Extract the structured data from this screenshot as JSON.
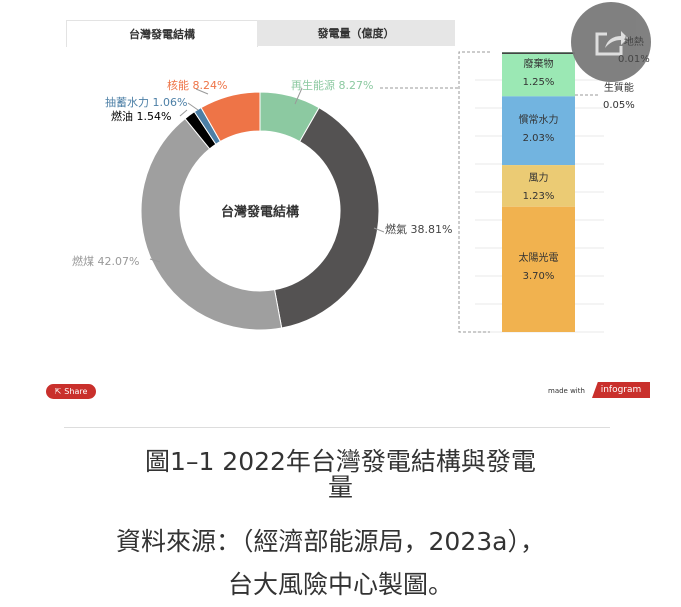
{
  "tabs": [
    {
      "label": "台灣發電結構",
      "active": true
    },
    {
      "label": "發電量（億度）",
      "active": false
    }
  ],
  "chart_data": [
    {
      "type": "pie",
      "subtype": "donut",
      "center_label": "台灣發電結構",
      "unit": "%",
      "slices": [
        {
          "name": "再生能源",
          "value": 8.27,
          "color": "#8cc9a1",
          "label": "再生能源 8.27%"
        },
        {
          "name": "燃氣",
          "value": 38.81,
          "color": "#545252",
          "label": "燃氣 38.81%"
        },
        {
          "name": "燃煤",
          "value": 42.07,
          "color": "#9f9f9f",
          "label": "燃煤 42.07%"
        },
        {
          "name": "燃油",
          "value": 1.54,
          "color": "#000000",
          "label": "燃油 1.54%"
        },
        {
          "name": "抽蓄水力",
          "value": 1.06,
          "color": "#4c7fa6",
          "label": "抽蓄水力 1.06%"
        },
        {
          "name": "核能",
          "value": 8.24,
          "color": "#ee7447",
          "label": "核能 8.24%"
        }
      ]
    },
    {
      "type": "bar",
      "subtype": "stacked",
      "breakdown_of": "再生能源",
      "unit": "%",
      "segments": [
        {
          "name": "地熱",
          "value": 0.01,
          "color": "#9be8b4",
          "label": "0.01%"
        },
        {
          "name": "生質能",
          "value": 0.05,
          "color": "#444444",
          "label": "0.05%"
        },
        {
          "name": "廢棄物",
          "value": 1.25,
          "color": "#9be8b4",
          "label": "1.25%"
        },
        {
          "name": "慣常水力",
          "value": 2.03,
          "color": "#72b4e0",
          "label": "2.03%"
        },
        {
          "name": "風力",
          "value": 1.23,
          "color": "#ebcb74",
          "label": "1.23%"
        },
        {
          "name": "太陽光電",
          "value": 3.7,
          "color": "#f1b24f",
          "label": "3.70%"
        }
      ]
    }
  ],
  "footer": {
    "share": "Share",
    "made_with": "made with",
    "brand": "infogram"
  },
  "caption": {
    "line1": "圖1–1 2022年台灣發電結構與發電",
    "line2": "量",
    "line3": "資料來源：（經濟部能源局，2023a），",
    "line4": "台大風險中心製圖。"
  },
  "colors": {
    "share_button": "#c9302c",
    "overlay_button": "#7a7a7a"
  },
  "icons": {
    "share": "share-icon",
    "overlay": "share-arrow-icon"
  }
}
